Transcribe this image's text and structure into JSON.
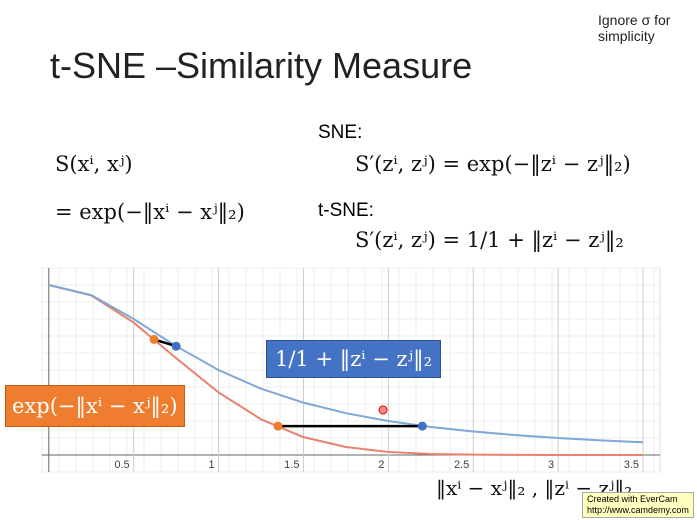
{
  "slide": {
    "title": "t-SNE –Similarity Measure",
    "note": "Ignore σ for simplicity",
    "formulas": {
      "s_x": "S(xⁱ, xʲ)",
      "eq_x": "= exp(−‖xⁱ − xʲ‖₂)",
      "sne_label": "SNE:",
      "s_sne": "S′(zⁱ, zʲ) = exp(−‖zⁱ − zʲ‖₂)",
      "tsne_label": "t-SNE:",
      "s_tsne": "S′(zⁱ, zʲ) = 1/1 + ‖zⁱ − zʲ‖₂"
    },
    "watermark": {
      "line1": "Created with EverCam",
      "line2": "http://www.camdemy.com"
    }
  },
  "chart_data": {
    "type": "line",
    "x_label": "‖xⁱ − xʲ‖₂ , ‖zⁱ − zʲ‖₂",
    "x": [
      0,
      0.25,
      0.5,
      0.75,
      1,
      1.25,
      1.5,
      1.75,
      2,
      2.25,
      2.5,
      2.75,
      3,
      3.25,
      3.5
    ],
    "series": [
      {
        "name": "exp(−‖xⁱ − xʲ‖₂)",
        "color": "#e8826f",
        "values": [
          1,
          0.939,
          0.779,
          0.57,
          0.368,
          0.21,
          0.105,
          0.047,
          0.018,
          0.006,
          0.002,
          0.0005,
          0.0001,
          0,
          0
        ]
      },
      {
        "name": "1/1 + ‖zⁱ − zʲ‖₂",
        "color": "#7fa7d8",
        "values": [
          1,
          0.941,
          0.8,
          0.64,
          0.5,
          0.39,
          0.308,
          0.246,
          0.2,
          0.165,
          0.138,
          0.117,
          0.1,
          0.086,
          0.075
        ]
      }
    ],
    "markers": {
      "x": [
        0.62,
        0.75,
        1.35,
        2.2
      ],
      "y": [
        0.68,
        0.64,
        0.17,
        0.17
      ],
      "colors": [
        "#ef7d30",
        "#3d6fc4",
        "#ef7d30",
        "#3d6fc4"
      ]
    },
    "xlim": [
      -0.04,
      3.6
    ],
    "ylim": [
      -0.1,
      1.1
    ],
    "xticks": [
      0.5,
      1,
      1.5,
      2,
      2.5,
      3,
      3.5
    ],
    "grid": true
  }
}
